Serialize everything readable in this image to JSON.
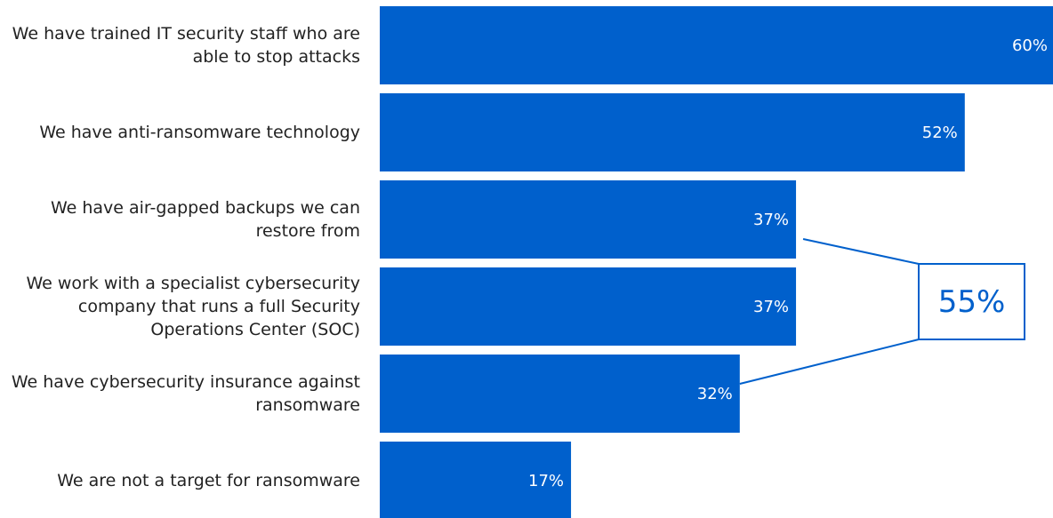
{
  "chart_data": {
    "type": "bar",
    "orientation": "horizontal",
    "categories": [
      "We have trained IT security staff who are able to stop attacks",
      "We have anti-ransomware technology",
      "We have air-gapped backups we can restore from",
      "We work with a specialist cybersecurity company that runs a full Security Operations Center (SOC)",
      "We have cybersecurity insurance against ransomware",
      "We are not a target for ransomware"
    ],
    "values": [
      60,
      52,
      37,
      37,
      32,
      17
    ],
    "value_labels": [
      "60%",
      "52%",
      "37%",
      "37%",
      "32%",
      "17%"
    ],
    "color": "#0060cc",
    "annotation": "55%"
  }
}
